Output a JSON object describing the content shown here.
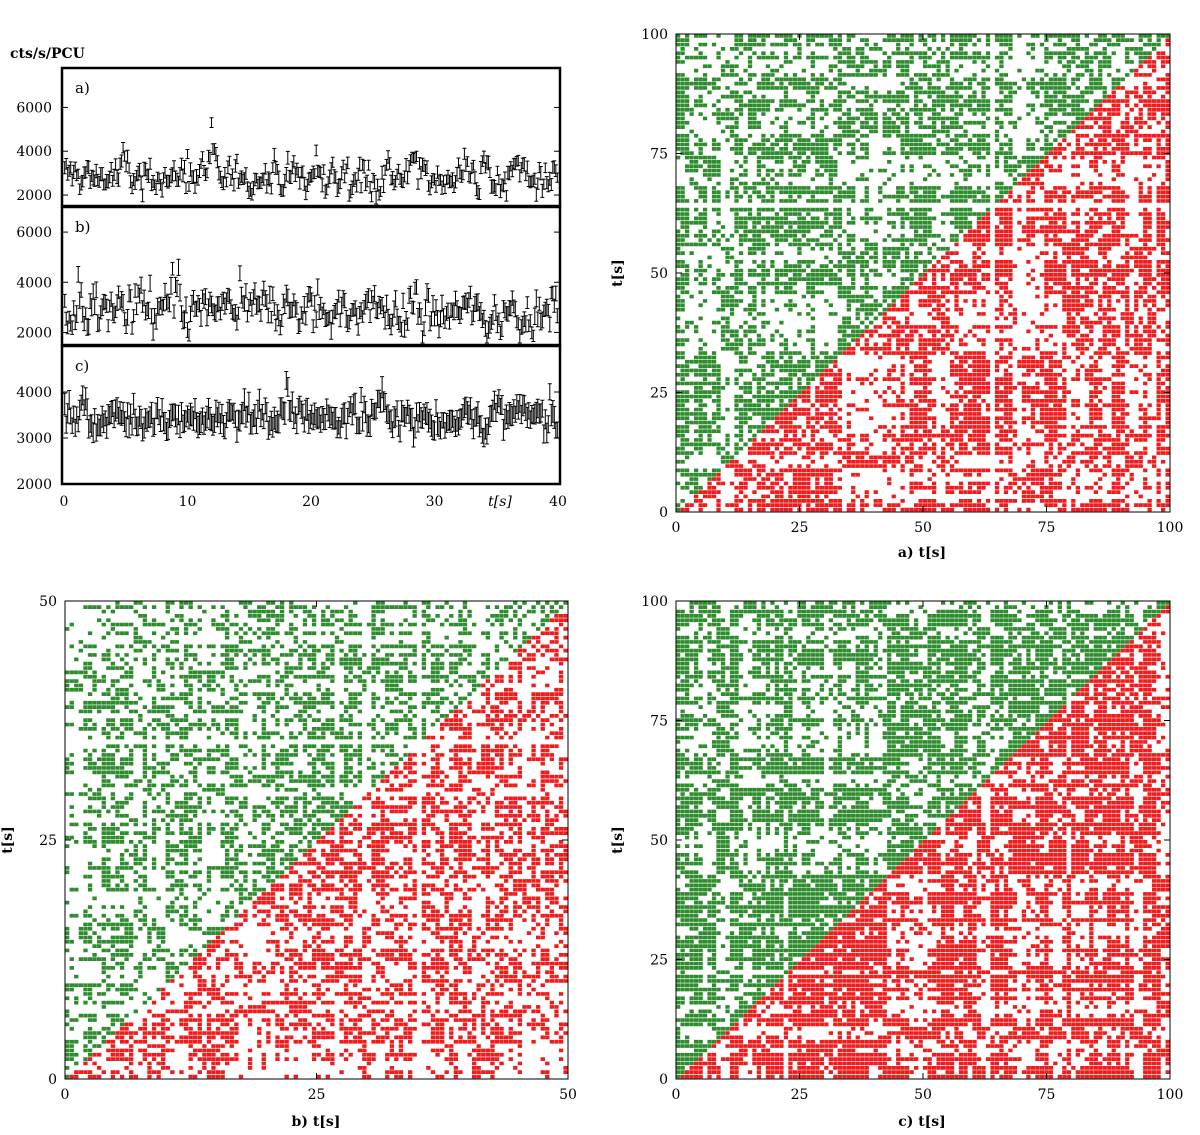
{
  "figure": {
    "light_curves": {
      "ylabel": "cts/s/PCU",
      "xlabel": "t[s]",
      "x_ticks": [
        "0",
        "10",
        "20",
        "30",
        "40"
      ],
      "xlim": [
        0,
        40
      ],
      "panels": [
        {
          "label": "a)",
          "ylim": [
            1500,
            7800
          ],
          "y_ticks": [
            "2000",
            "4000",
            "6000"
          ],
          "mean": 2850,
          "noise": 550,
          "err": 260
        },
        {
          "label": "b)",
          "ylim": [
            1500,
            7000
          ],
          "y_ticks": [
            "2000",
            "4000",
            "6000"
          ],
          "mean": 2850,
          "noise": 600,
          "err": 280
        },
        {
          "label": "c)",
          "ylim": [
            2000,
            5000
          ],
          "y_ticks": [
            "2000",
            "3000",
            "4000"
          ],
          "mean": 3450,
          "noise": 230,
          "err": 200
        }
      ]
    },
    "recurrence_plots": [
      {
        "label": "a) t[s]",
        "ylabel": "t[s]",
        "range": [
          0,
          100
        ],
        "ticks": [
          "0",
          "25",
          "50",
          "75",
          "100"
        ],
        "density_upper": 0.42,
        "density_lower": 0.46
      },
      {
        "label": "b) t[s]",
        "ylabel": "t[s]",
        "range": [
          0,
          50
        ],
        "ticks": [
          "0",
          "25",
          "50"
        ],
        "density_upper": 0.28,
        "density_lower": 0.34
      },
      {
        "label": "c) t[s]",
        "ylabel": "t[s]",
        "range": [
          0,
          100
        ],
        "ticks": [
          "0",
          "25",
          "50",
          "75",
          "100"
        ],
        "density_upper": 0.55,
        "density_lower": 0.6
      }
    ],
    "colors": {
      "upper": "#2e8b2e",
      "lower": "#ee1c1c",
      "axis": "#000000"
    }
  },
  "chart_data": [
    {
      "type": "line",
      "title": "",
      "xlabel": "t[s]",
      "ylabel": "cts/s/PCU",
      "xlim": [
        0,
        40
      ],
      "series": [
        {
          "name": "a)",
          "ylim": [
            1500,
            7800
          ],
          "typical_range": [
            2000,
            4500
          ],
          "mean": 2850
        },
        {
          "name": "b)",
          "ylim": [
            1500,
            7000
          ],
          "typical_range": [
            2000,
            4500
          ],
          "mean": 2850
        },
        {
          "name": "c)",
          "ylim": [
            2000,
            5000
          ],
          "typical_range": [
            3000,
            4000
          ],
          "mean": 3450
        }
      ]
    },
    {
      "type": "heatmap",
      "title": "a)",
      "xlabel": "t[s]",
      "ylabel": "t[s]",
      "xlim": [
        0,
        100
      ],
      "ylim": [
        0,
        100
      ],
      "upper_triangle_color": "green",
      "lower_triangle_color": "red"
    },
    {
      "type": "heatmap",
      "title": "b)",
      "xlabel": "t[s]",
      "ylabel": "t[s]",
      "xlim": [
        0,
        50
      ],
      "ylim": [
        0,
        50
      ],
      "upper_triangle_color": "green",
      "lower_triangle_color": "red"
    },
    {
      "type": "heatmap",
      "title": "c)",
      "xlabel": "t[s]",
      "ylabel": "t[s]",
      "xlim": [
        0,
        100
      ],
      "ylim": [
        0,
        100
      ],
      "upper_triangle_color": "green",
      "lower_triangle_color": "red"
    }
  ]
}
